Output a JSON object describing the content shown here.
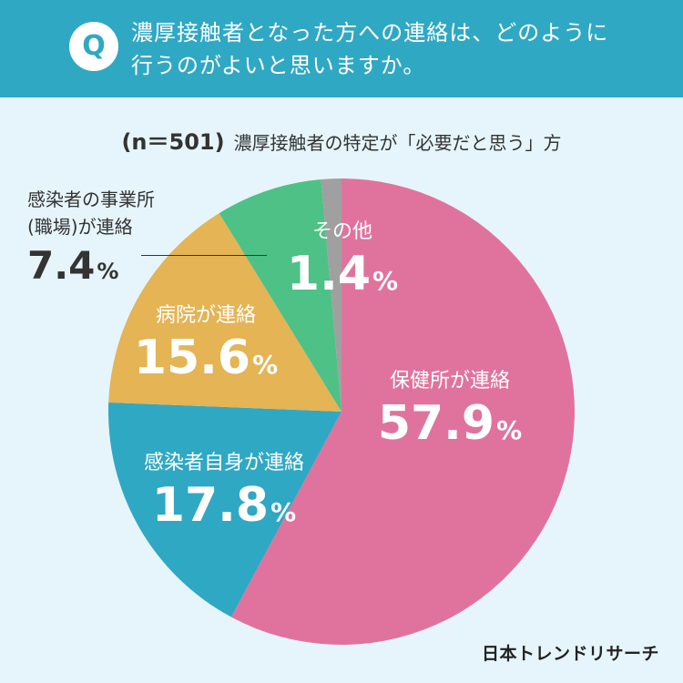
{
  "header": {
    "badge": "Q",
    "question_line1": "濃厚接触者となった方への連絡は、どのように",
    "question_line2": "行うのがよいと思いますか。"
  },
  "subtitle": {
    "sample": "(n＝501)",
    "condition": "濃厚接触者の特定が「必要だと思う」方"
  },
  "chart_data": {
    "type": "pie",
    "start": "12 o'clock",
    "direction": "clockwise",
    "slices": [
      {
        "label": "保健所が連絡",
        "value": 57.9,
        "value_text": "57.9",
        "color": "#e0739d"
      },
      {
        "label": "感染者自身が連絡",
        "value": 17.8,
        "value_text": "17.8",
        "color": "#2fa8c4"
      },
      {
        "label": "病院が連絡",
        "value": 15.6,
        "value_text": "15.6",
        "color": "#e4b455"
      },
      {
        "label_line1": "感染者の事業所",
        "label_line2": "(職場)が連絡",
        "value": 7.4,
        "value_text": "7.4",
        "color": "#4ec186"
      },
      {
        "label": "その他",
        "value": 1.4,
        "value_text": "1.4",
        "color": "#a0a0a0"
      }
    ],
    "percent_sign": "%"
  },
  "brand": "日本トレンドリサーチ"
}
